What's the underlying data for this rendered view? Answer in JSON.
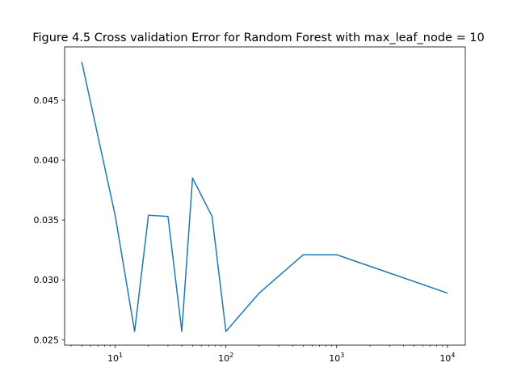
{
  "chart_data": {
    "type": "line",
    "title": "Figure 4.5 Cross validation Error for Random Forest with max_leaf_node = 10",
    "xlabel": "",
    "ylabel": "",
    "xscale": "log",
    "xlim": [
      3.5,
      14500
    ],
    "ylim": [
      0.02455,
      0.04945
    ],
    "grid": false,
    "line_color": "#1f77b4",
    "x_ticks": [
      {
        "value": 10,
        "base": "10",
        "exp": "1"
      },
      {
        "value": 100,
        "base": "10",
        "exp": "2"
      },
      {
        "value": 1000,
        "base": "10",
        "exp": "3"
      },
      {
        "value": 10000,
        "base": "10",
        "exp": "4"
      }
    ],
    "y_ticks": [
      {
        "value": 0.025,
        "label": "0.025"
      },
      {
        "value": 0.03,
        "label": "0.030"
      },
      {
        "value": 0.035,
        "label": "0.035"
      },
      {
        "value": 0.04,
        "label": "0.040"
      },
      {
        "value": 0.045,
        "label": "0.045"
      }
    ],
    "series": [
      {
        "x": [
          5,
          10,
          15,
          20,
          30,
          40,
          50,
          75,
          100,
          200,
          500,
          1000,
          10000
        ],
        "y": [
          0.0482,
          0.0354,
          0.0257,
          0.0354,
          0.0353,
          0.0257,
          0.0385,
          0.0353,
          0.0257,
          0.0289,
          0.0321,
          0.0321,
          0.0289
        ]
      }
    ]
  }
}
